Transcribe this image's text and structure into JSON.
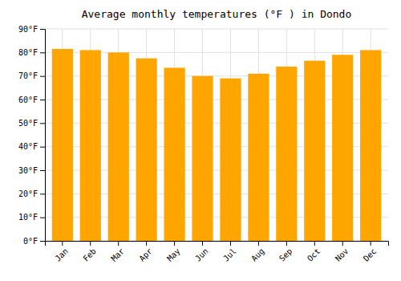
{
  "chart_data": {
    "type": "bar",
    "title": "Average monthly temperatures (°F ) in Dondo",
    "categories": [
      "Jan",
      "Feb",
      "Mar",
      "Apr",
      "May",
      "Jun",
      "Jul",
      "Aug",
      "Sep",
      "Oct",
      "Nov",
      "Dec"
    ],
    "values": [
      81.5,
      81.0,
      80.0,
      77.5,
      73.5,
      70.0,
      69.0,
      71.0,
      74.0,
      76.5,
      79.0,
      81.0
    ],
    "color": "#FFA500",
    "ylim": [
      0,
      90
    ],
    "yticks": [
      {
        "value": 0,
        "label": "0°F"
      },
      {
        "value": 10,
        "label": "10°F"
      },
      {
        "value": 20,
        "label": "20°F"
      },
      {
        "value": 30,
        "label": "30°F"
      },
      {
        "value": 40,
        "label": "40°F"
      },
      {
        "value": 50,
        "label": "50°F"
      },
      {
        "value": 60,
        "label": "60°F"
      },
      {
        "value": 70,
        "label": "70°F"
      },
      {
        "value": 80,
        "label": "80°F"
      },
      {
        "value": 90,
        "label": "90°F"
      }
    ],
    "grid": true
  }
}
